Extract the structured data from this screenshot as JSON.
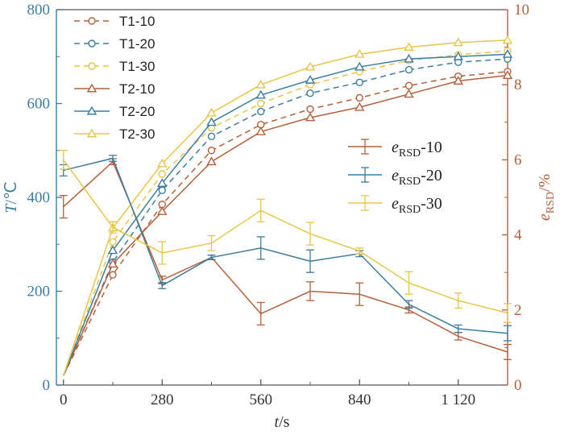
{
  "chart_data": {
    "type": "line",
    "x_axis": {
      "label_var": "t",
      "label_unit": "/s",
      "ticks": [
        "0",
        "280",
        "560",
        "840",
        "1 120"
      ],
      "tick_values": [
        0,
        280,
        560,
        840,
        1120
      ],
      "range": [
        -20,
        1260
      ]
    },
    "y_left": {
      "label_var": "T",
      "label_unit": "/℃",
      "ticks": [
        "0",
        "200",
        "400",
        "600",
        "800"
      ],
      "tick_values": [
        0,
        200,
        400,
        600,
        800
      ],
      "range": [
        0,
        800
      ],
      "color": "#3a7ea1"
    },
    "y_right": {
      "label_var": "e",
      "label_sub": "RSD",
      "label_unit": "/%",
      "ticks": [
        "0",
        "2",
        "4",
        "6",
        "8",
        "10"
      ],
      "tick_values": [
        0,
        2,
        4,
        6,
        8,
        10
      ],
      "range": [
        0,
        10
      ],
      "color": "#b5603a"
    },
    "x": [
      0,
      140,
      280,
      420,
      560,
      700,
      840,
      980,
      1120,
      1260
    ],
    "temperature_series": [
      {
        "name": "T1-10",
        "color": "#b5603a",
        "dash": true,
        "marker": "circle",
        "values": [
          20,
          235,
          385,
          500,
          555,
          588,
          612,
          638,
          658,
          668
        ]
      },
      {
        "name": "T1-20",
        "color": "#3a7ea1",
        "dash": true,
        "marker": "circle",
        "values": [
          20,
          262,
          415,
          530,
          583,
          622,
          645,
          672,
          688,
          695
        ]
      },
      {
        "name": "T1-30",
        "color": "#e8c547",
        "dash": true,
        "marker": "circle",
        "values": [
          20,
          305,
          450,
          548,
          600,
          640,
          668,
          692,
          704,
          712
        ]
      },
      {
        "name": "T2-10",
        "color": "#b5603a",
        "dash": false,
        "marker": "triangle",
        "values": [
          20,
          258,
          370,
          476,
          540,
          570,
          592,
          620,
          648,
          660
        ]
      },
      {
        "name": "T2-20",
        "color": "#3a7ea1",
        "dash": false,
        "marker": "triangle",
        "values": [
          20,
          287,
          430,
          560,
          618,
          650,
          678,
          695,
          700,
          705
        ]
      },
      {
        "name": "T2-30",
        "color": "#e8c547",
        "dash": false,
        "marker": "triangle",
        "values": [
          20,
          335,
          472,
          580,
          640,
          678,
          705,
          720,
          730,
          735
        ]
      }
    ],
    "error_series": [
      {
        "name_var": "e",
        "name_sub": "RSD",
        "name_suffix": "-10",
        "color": "#b5603a",
        "values": [
          4.75,
          5.95,
          2.8,
          3.4,
          1.9,
          2.5,
          2.42,
          2.0,
          1.3,
          0.88
        ],
        "errors": [
          0.3,
          0.08,
          0.1,
          0.06,
          0.3,
          0.25,
          0.3,
          0.08,
          0.1,
          0.2
        ]
      },
      {
        "name_var": "e",
        "name_sub": "RSD",
        "name_suffix": "-20",
        "color": "#3a7ea1",
        "values": [
          5.72,
          6.04,
          2.65,
          3.4,
          3.65,
          3.3,
          3.5,
          2.15,
          1.5,
          1.38
        ],
        "errors": [
          0.15,
          0.08,
          0.08,
          0.06,
          0.3,
          0.3,
          0.08,
          0.1,
          0.1,
          0.2
        ]
      },
      {
        "name_var": "e",
        "name_sub": "RSD",
        "name_suffix": "-30",
        "color": "#e8c547",
        "values": [
          6.0,
          4.2,
          3.52,
          3.78,
          4.65,
          4.03,
          3.57,
          2.72,
          2.25,
          1.92
        ],
        "errors": [
          0.25,
          0.15,
          0.3,
          0.2,
          0.3,
          0.3,
          0.08,
          0.3,
          0.2,
          0.25
        ]
      }
    ],
    "legend_placement": [
      "top-left",
      "middle-right"
    ],
    "grid": false
  }
}
